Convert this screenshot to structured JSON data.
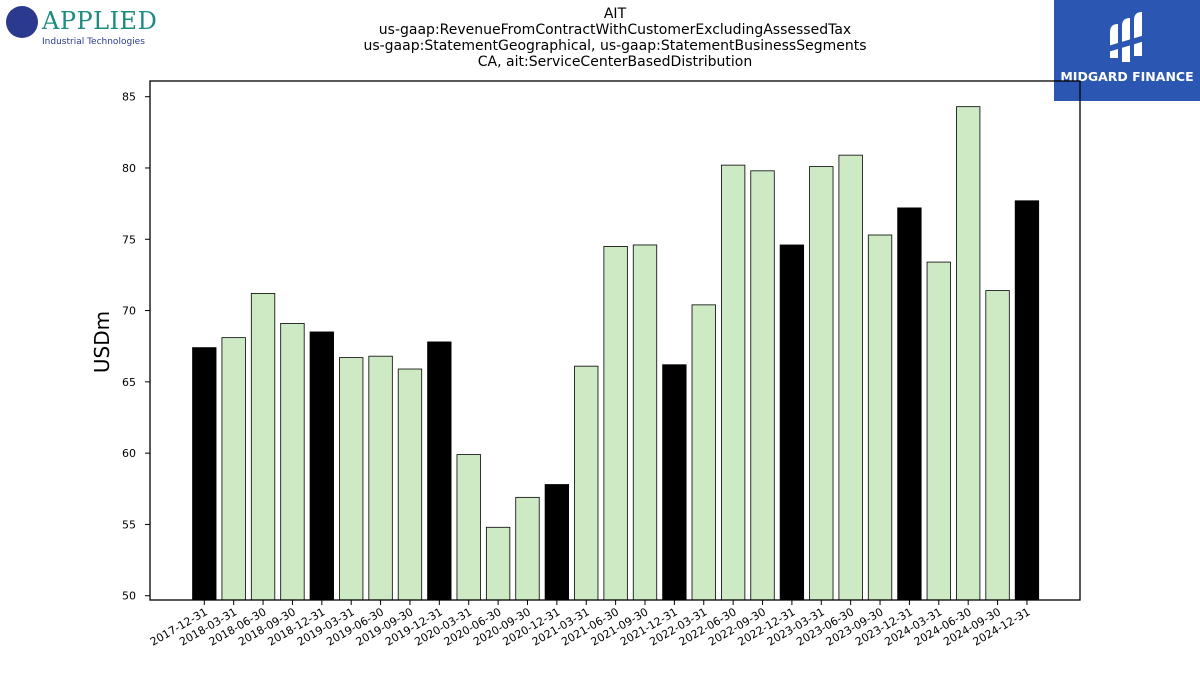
{
  "header": {
    "title_lines": [
      "AIT",
      "us-gaap:RevenueFromContractWithCustomerExcludingAssessedTax",
      "us-gaap:StatementGeographical, us-gaap:StatementBusinessSegments",
      "CA, ait:ServiceCenterBasedDistribution"
    ]
  },
  "logos": {
    "left_word": "APPLIED",
    "left_sub": "Industrial Technologies",
    "right_text": "MIDGARD FINANCE"
  },
  "colors": {
    "q4_bar": "#000000",
    "other_bar": "#cdeac5",
    "right_logo_bg": "#2b57b3"
  },
  "chart_data": {
    "type": "bar",
    "title": "AIT",
    "xlabel": "",
    "ylabel": "USDm",
    "ylim": [
      49.7,
      86.1
    ],
    "yticks": [
      50,
      55,
      60,
      65,
      70,
      75,
      80,
      85
    ],
    "grid": false,
    "categories": [
      "2017-12-31",
      "2018-03-31",
      "2018-06-30",
      "2018-09-30",
      "2018-12-31",
      "2019-03-31",
      "2019-06-30",
      "2019-09-30",
      "2019-12-31",
      "2020-03-31",
      "2020-06-30",
      "2020-09-30",
      "2020-12-31",
      "2021-03-31",
      "2021-06-30",
      "2021-09-30",
      "2021-12-31",
      "2022-03-31",
      "2022-06-30",
      "2022-09-30",
      "2022-12-31",
      "2023-03-31",
      "2023-06-30",
      "2023-09-30",
      "2023-12-31",
      "2024-03-31",
      "2024-06-30",
      "2024-09-30",
      "2024-12-31"
    ],
    "values": [
      67.4,
      68.1,
      71.2,
      69.1,
      68.5,
      66.7,
      66.8,
      65.9,
      67.8,
      59.9,
      54.8,
      56.9,
      57.8,
      66.1,
      74.5,
      74.6,
      66.2,
      70.4,
      80.2,
      79.8,
      74.6,
      80.1,
      80.9,
      75.3,
      77.2,
      73.4,
      84.3,
      71.4,
      77.7
    ],
    "highlight_q4": true
  }
}
